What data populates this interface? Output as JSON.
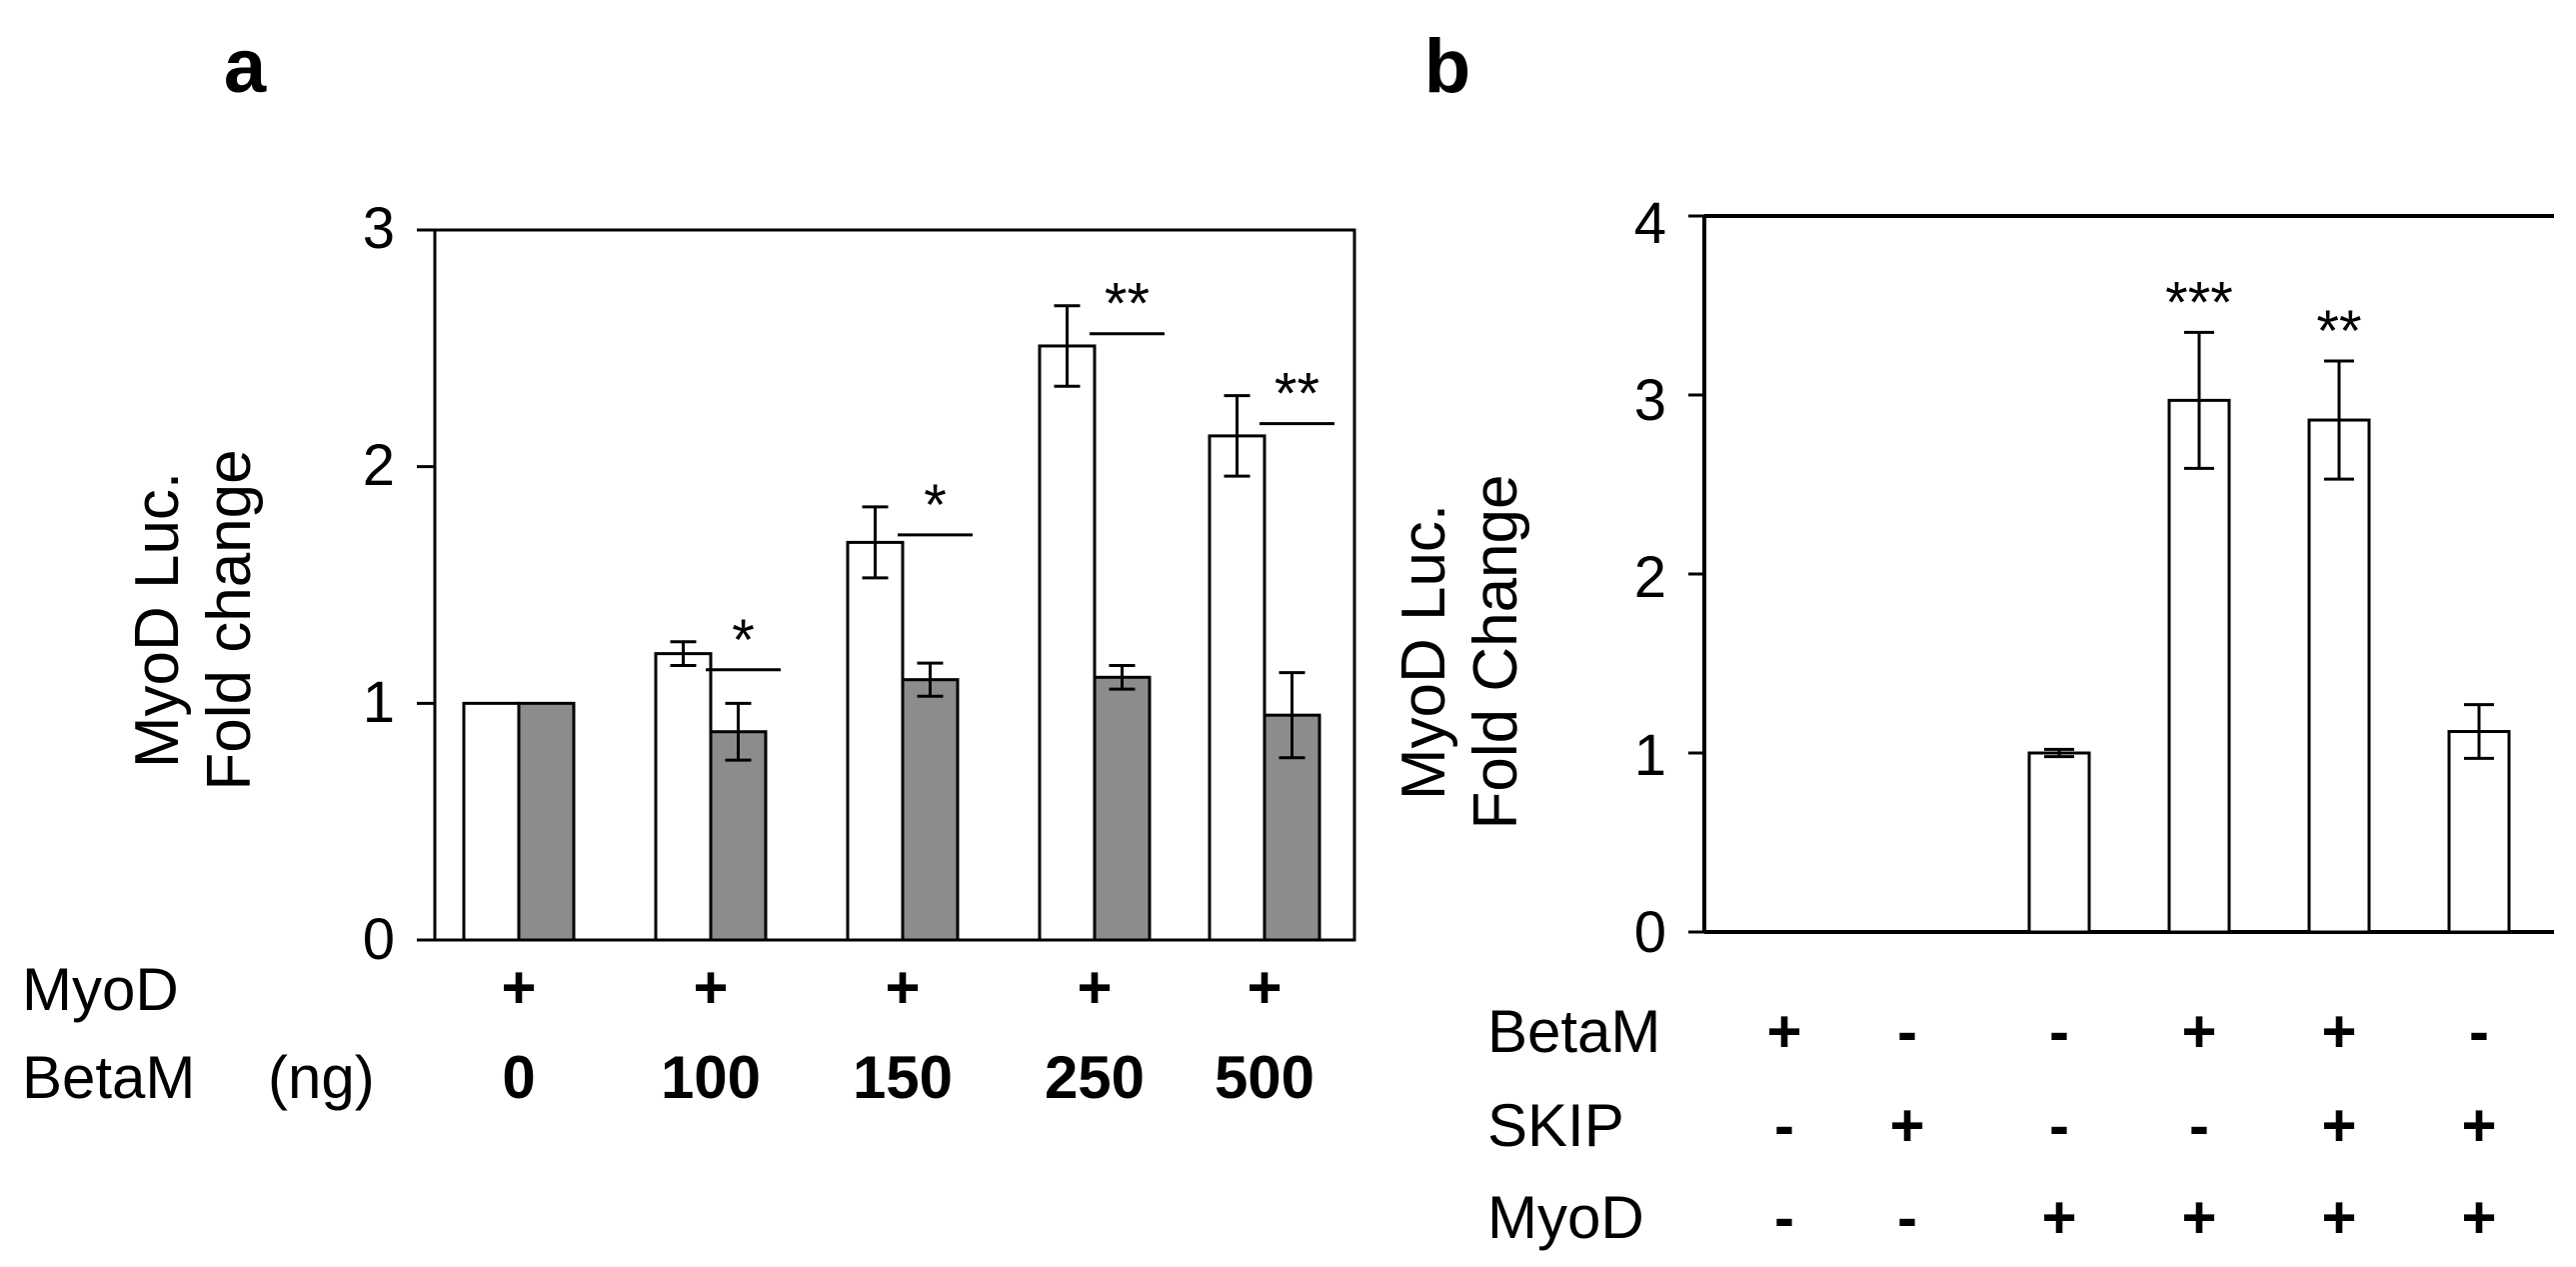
{
  "chart_data": [
    {
      "type": "bar",
      "panel_label": "a",
      "ylabel_lines": [
        "MyoD Luc.",
        "Fold change"
      ],
      "ylim": [
        0,
        3
      ],
      "yticks": [
        "0",
        "1",
        "2",
        "3"
      ],
      "groups": [
        {
          "myod": "+",
          "betam_dose": "0",
          "white": 1.0,
          "white_err": 0,
          "gray": 1.0,
          "gray_err": 0,
          "sig": ""
        },
        {
          "myod": "+",
          "betam_dose": "100",
          "white": 1.21,
          "white_err": 0.05,
          "gray": 0.88,
          "gray_err": 0.12,
          "sig": "*"
        },
        {
          "myod": "+",
          "betam_dose": "150",
          "white": 1.68,
          "white_err": 0.15,
          "gray": 1.1,
          "gray_err": 0.07,
          "sig": "*"
        },
        {
          "myod": "+",
          "betam_dose": "250",
          "white": 2.51,
          "white_err": 0.17,
          "gray": 1.11,
          "gray_err": 0.05,
          "sig": "**"
        },
        {
          "myod": "+",
          "betam_dose": "500",
          "white": 2.13,
          "white_err": 0.17,
          "gray": 0.95,
          "gray_err": 0.18,
          "sig": "**"
        }
      ],
      "row_labels": {
        "myod": "MyoD",
        "betam": "BetaM",
        "betam_unit": "(ng)"
      },
      "colors": {
        "white": "#ffffff",
        "gray": "#8c8c8c",
        "axis": "#000000"
      }
    },
    {
      "type": "bar",
      "panel_label": "b",
      "ylabel_lines": [
        "MyoD Luc.",
        "Fold Change"
      ],
      "ylim": [
        0,
        4
      ],
      "yticks": [
        "0",
        "1",
        "2",
        "3",
        "4"
      ],
      "groups": [
        {
          "betam": "+",
          "skip": "-",
          "myod": "-",
          "value": null,
          "err": 0,
          "sig": ""
        },
        {
          "betam": "-",
          "skip": "+",
          "myod": "-",
          "value": null,
          "err": 0,
          "sig": ""
        },
        {
          "betam": "-",
          "skip": "-",
          "myod": "+",
          "value": 1.0,
          "err": 0.02,
          "sig": ""
        },
        {
          "betam": "+",
          "skip": "-",
          "myod": "+",
          "value": 2.97,
          "err": 0.38,
          "sig": "***"
        },
        {
          "betam": "+",
          "skip": "+",
          "myod": "+",
          "value": 2.86,
          "err": 0.33,
          "sig": "**"
        },
        {
          "betam": "-",
          "skip": "+",
          "myod": "+",
          "value": 1.12,
          "err": 0.15,
          "sig": ""
        }
      ],
      "row_labels": {
        "betam": "BetaM",
        "skip": "SKIP",
        "myod": "MyoD"
      },
      "colors": {
        "bar": "#ffffff",
        "axis": "#000000"
      }
    }
  ]
}
